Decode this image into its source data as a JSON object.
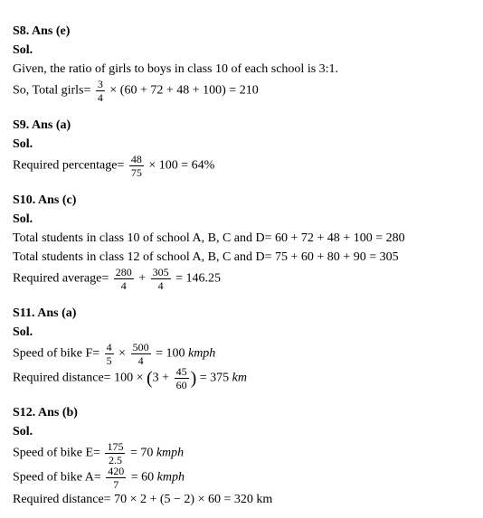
{
  "s8": {
    "heading": "S8. Ans (e)",
    "sol": "Sol.",
    "line1": "Given, the ratio of girls to boys in class 10 of each school is 3:1.",
    "label": "So, Total girls=",
    "frac_num": "3",
    "frac_den": "4",
    "expr": "× (60 + 72 + 48 + 100) = 210"
  },
  "s9": {
    "heading": "S9. Ans (a)",
    "sol": "Sol.",
    "label": "Required percentage=",
    "frac_num": "48",
    "frac_den": "75",
    "expr": "× 100 = 64%"
  },
  "s10": {
    "heading": "S10. Ans (c)",
    "sol": "Sol.",
    "line1": "Total students in class 10 of school A, B, C and D= 60 + 72 + 48 + 100 = 280",
    "line2": "Total students in class 12 of school A, B, C and D= 75 + 60 + 80 + 90 = 305",
    "label": "Required average=",
    "f1_num": "280",
    "f1_den": "4",
    "plus": "+",
    "f2_num": "305",
    "f2_den": "4",
    "eq": "= 146.25"
  },
  "s11": {
    "heading": "S11. Ans (a)",
    "sol": "Sol.",
    "label1": "Speed of bike F=",
    "f1_num": "4",
    "f1_den": "5",
    "times": "×",
    "f2_num": "500",
    "f2_den": "4",
    "eq1": "= 100 ",
    "unit1": "kmph",
    "label2": "Required distance= 100 × ",
    "inparen_left": "3 +",
    "f3_num": "45",
    "f3_den": "60",
    "eq2": " = 375 ",
    "unit2": "km"
  },
  "s12": {
    "heading": "S12. Ans (b)",
    "sol": "Sol.",
    "label1": "Speed of bike E=",
    "f1_num": "175",
    "f1_den": "2.5",
    "eq1": "= 70 ",
    "unit1": "kmph",
    "label2": "Speed of bike A=",
    "f2_num": "420",
    "f2_den": "7",
    "eq2": "= 60 ",
    "unit2": "kmph",
    "line3": "Required distance= 70 × 2 + (5 − 2) × 60 = 320 km"
  }
}
